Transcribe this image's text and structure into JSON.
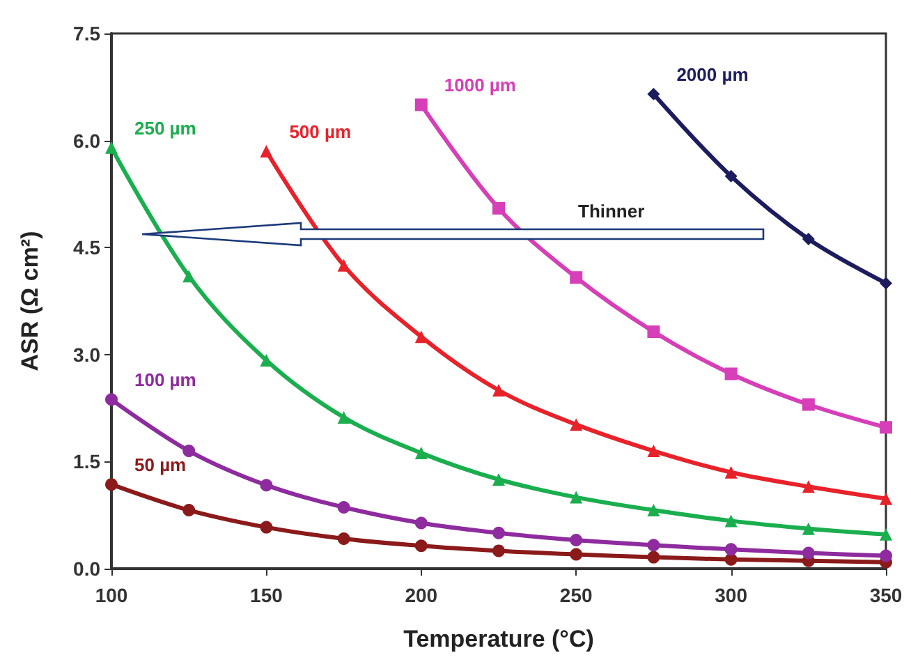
{
  "chart_data": {
    "type": "line",
    "xlabel": "Temperature (°C)",
    "ylabel": "ASR (Ω cm²)",
    "x": [
      100,
      125,
      150,
      175,
      200,
      225,
      250,
      275,
      300,
      325,
      350
    ],
    "xlim": [
      100,
      350
    ],
    "xticks": [
      100,
      150,
      200,
      250,
      300,
      350
    ],
    "ylim": [
      0,
      7.5
    ],
    "yticks": [
      {
        "value": 0,
        "label": "0.0"
      },
      {
        "value": 1.5,
        "label": "1.5"
      },
      {
        "value": 3,
        "label": "3.0"
      },
      {
        "value": 4.5,
        "label": "4.5"
      },
      {
        "value": 6,
        "label": "6.0"
      },
      {
        "value": 7.5,
        "label": "7.5"
      }
    ],
    "grid": false,
    "legend": false,
    "line_style": "solid",
    "series": [
      {
        "name": "50 µm",
        "color": "#8b1a1a",
        "marker": "circle",
        "values": [
          1.18,
          0.82,
          0.58,
          0.42,
          0.32,
          0.25,
          0.2,
          0.16,
          0.13,
          0.11,
          0.09
        ]
      },
      {
        "name": "100 µm",
        "color": "#8e2b9e",
        "marker": "circle",
        "values": [
          2.37,
          1.65,
          1.17,
          0.86,
          0.64,
          0.5,
          0.4,
          0.33,
          0.27,
          0.22,
          0.18
        ]
      },
      {
        "name": "250 µm",
        "color": "#1aae4e",
        "marker": "triangle",
        "values": [
          5.9,
          4.1,
          2.92,
          2.12,
          1.62,
          1.25,
          1.0,
          0.82,
          0.67,
          0.56,
          0.48
        ]
      },
      {
        "name": "500 µm",
        "color": "#e8222a",
        "marker": "triangle",
        "values": [
          null,
          null,
          5.85,
          4.25,
          3.25,
          2.5,
          2.02,
          1.65,
          1.35,
          1.15,
          0.98
        ]
      },
      {
        "name": "1000 µm",
        "color": "#d63fb8",
        "marker": "square",
        "values": [
          null,
          null,
          null,
          null,
          6.5,
          5.05,
          4.08,
          3.32,
          2.73,
          2.3,
          1.98
        ]
      },
      {
        "name": "2000 µm",
        "color": "#1c1c5e",
        "marker": "diamond",
        "values": [
          null,
          null,
          null,
          null,
          null,
          null,
          null,
          6.65,
          5.5,
          4.62,
          4.0
        ]
      }
    ],
    "annotations": [
      "Thinner"
    ]
  }
}
